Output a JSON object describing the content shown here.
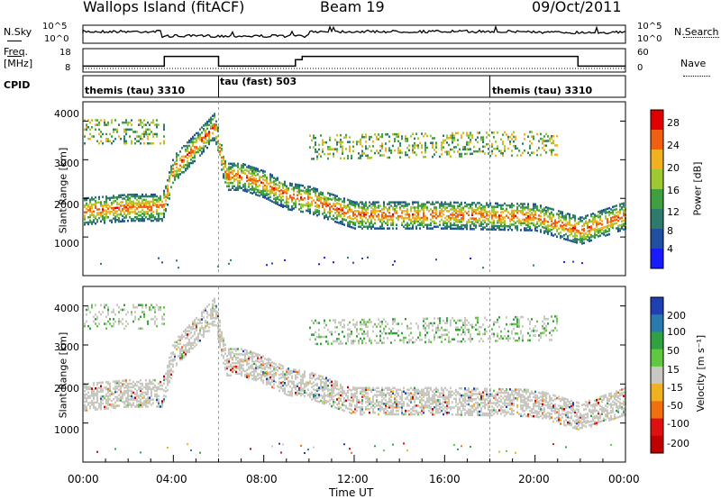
{
  "header": {
    "station": "Wallops Island (fitACF)",
    "beam": "Beam 19",
    "date": "09/Oct/2011"
  },
  "noise_panel": {
    "left_label": "N.Sky",
    "left_ticks": [
      "10^5",
      "10^0"
    ],
    "right_label": "N.Search",
    "right_ticks": [
      "10^5",
      "10^0"
    ]
  },
  "freq_panel": {
    "left_label_1": "Freq.",
    "left_label_2": "[MHz]",
    "left_ticks": [
      "18",
      "8"
    ],
    "right_label": "Nave",
    "right_ticks": [
      "60",
      "0"
    ]
  },
  "cpid_panel": {
    "label": "CPID",
    "segments": [
      {
        "label": "themis (tau) 3310",
        "start": 0,
        "end": 6
      },
      {
        "label": "tau (fast) 503",
        "start": 6,
        "end": 18
      },
      {
        "label": "themis (tau) 3310",
        "start": 18,
        "end": 24
      }
    ]
  },
  "power_panel": {
    "ylabel": "Slant Range [km]",
    "yticks": [
      "1000",
      "2000",
      "3000",
      "4000"
    ],
    "colorbar_label": "Power [dB]",
    "colorbar_ticks": [
      "4",
      "8",
      "12",
      "16",
      "20",
      "24",
      "28"
    ],
    "colors": [
      "#1a1aff",
      "#2050a0",
      "#2e7a6c",
      "#40a040",
      "#a0c830",
      "#f0b020",
      "#f06010",
      "#e00000"
    ]
  },
  "velocity_panel": {
    "ylabel": "Slant Range [km]",
    "yticks": [
      "1000",
      "2000",
      "3000",
      "4000"
    ],
    "colorbar_label": "Velocity [m s⁻¹]",
    "colorbar_ticks": [
      "200",
      "100",
      "50",
      "15",
      "-15",
      "-50",
      "-100",
      "-200"
    ],
    "colors": [
      "#1e40b0",
      "#2a7ab0",
      "#30a040",
      "#60c840",
      "#c8c8c0",
      "#f0b020",
      "#f07010",
      "#e01010",
      "#c00000"
    ]
  },
  "x_axis": {
    "label": "Time UT",
    "ticks": [
      "00:00",
      "04:00",
      "08:00",
      "12:00",
      "16:00",
      "20:00",
      "00:00"
    ]
  },
  "chart_data": {
    "type": "heatmap",
    "title": "Wallops Island (fitACF)",
    "xlabel": "Time UT",
    "ylabel": "Slant Range [km]",
    "xlim_hours": [
      0,
      24
    ],
    "ylim_km": [
      0,
      4500
    ],
    "frequency_mhz": [
      {
        "start": 0,
        "end": 3.6,
        "value": 10
      },
      {
        "start": 3.6,
        "end": 6,
        "value": 16
      },
      {
        "start": 6,
        "end": 9.4,
        "value": 10
      },
      {
        "start": 9.4,
        "end": 9.7,
        "value": 14
      },
      {
        "start": 9.7,
        "end": 21.9,
        "value": 16
      },
      {
        "start": 21.9,
        "end": 24,
        "value": 10
      }
    ],
    "main_echo_band_km": [
      {
        "t": 0.0,
        "center": 1700
      },
      {
        "t": 1.0,
        "center": 1750
      },
      {
        "t": 2.0,
        "center": 1800
      },
      {
        "t": 3.5,
        "center": 1800
      },
      {
        "t": 4.0,
        "center": 2800
      },
      {
        "t": 5.0,
        "center": 3400
      },
      {
        "t": 5.8,
        "center": 3900
      },
      {
        "t": 6.3,
        "center": 2600
      },
      {
        "t": 7.0,
        "center": 2600
      },
      {
        "t": 8.0,
        "center": 2400
      },
      {
        "t": 9.0,
        "center": 2100
      },
      {
        "t": 10.0,
        "center": 2000
      },
      {
        "t": 12.0,
        "center": 1600
      },
      {
        "t": 16.0,
        "center": 1600
      },
      {
        "t": 20.0,
        "center": 1550
      },
      {
        "t": 22.0,
        "center": 1200
      },
      {
        "t": 24.0,
        "center": 1600
      }
    ]
  }
}
